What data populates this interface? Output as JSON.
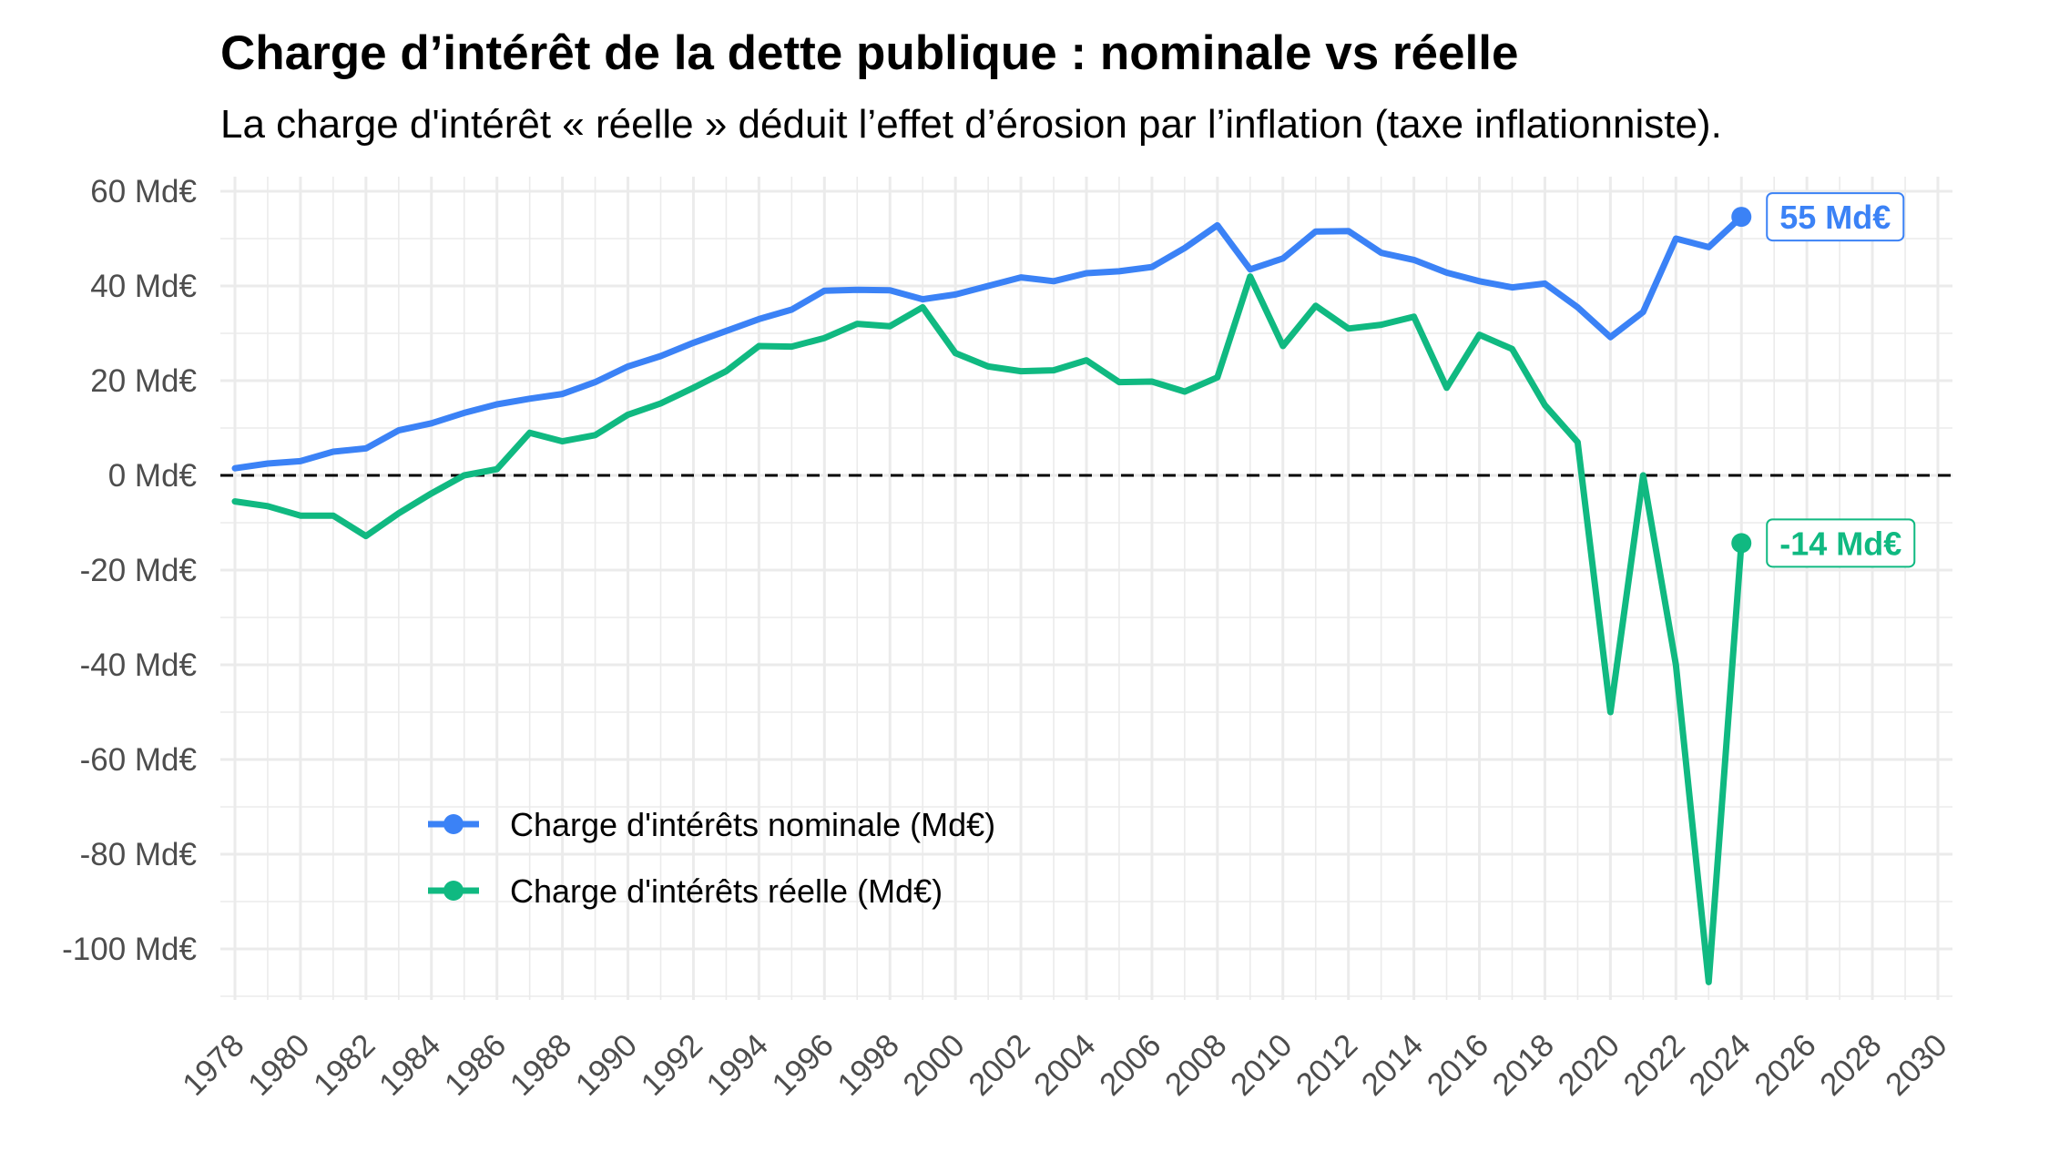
{
  "title": "Charge d’intérêt de la dette publique : nominale vs réelle",
  "subtitle": "La charge d'intérêt « réelle » déduit l’effet d’érosion par l’inflation (taxe inflationniste).",
  "colors": {
    "nominal": "#3b82f6",
    "real": "#10b981",
    "grid": "#ebebeb",
    "zero_line": "#000000",
    "axis_text": "#4d4d4d"
  },
  "chart_data": {
    "type": "line",
    "x_axis": {
      "range": [
        1978,
        2030
      ],
      "ticks": [
        1978,
        1980,
        1982,
        1984,
        1986,
        1988,
        1990,
        1992,
        1994,
        1996,
        1998,
        2000,
        2002,
        2004,
        2006,
        2008,
        2010,
        2012,
        2014,
        2016,
        2018,
        2020,
        2022,
        2024,
        2026,
        2028,
        2030
      ]
    },
    "y_axis": {
      "range": [
        -110,
        60
      ],
      "ticks": [
        60,
        40,
        20,
        0,
        -20,
        -40,
        -60,
        -80,
        -100
      ],
      "tick_labels": [
        "60 Md€",
        "40 Md€",
        "20 Md€",
        "0 Md€",
        "-20 Md€",
        "-40 Md€",
        "-60 Md€",
        "-80 Md€",
        "-100 Md€"
      ]
    },
    "grid": true,
    "reference_line": {
      "y": 0,
      "style": "dashed"
    },
    "legend_position": "bottom-left",
    "x": [
      1978,
      1979,
      1980,
      1981,
      1982,
      1983,
      1984,
      1985,
      1986,
      1987,
      1988,
      1989,
      1990,
      1991,
      1992,
      1993,
      1994,
      1995,
      1996,
      1997,
      1998,
      1999,
      2000,
      2001,
      2002,
      2003,
      2004,
      2005,
      2006,
      2007,
      2008,
      2009,
      2010,
      2011,
      2012,
      2013,
      2014,
      2015,
      2016,
      2017,
      2018,
      2019,
      2020,
      2021,
      2022,
      2023,
      2024
    ],
    "series": [
      {
        "name": "Charge d'intérêts nominale (Md€)",
        "color_key": "nominal",
        "values": [
          1.5,
          2.5,
          3,
          5,
          5.7,
          9.5,
          11,
          13.2,
          15,
          16.2,
          17.2,
          19.7,
          23,
          25.2,
          28,
          30.5,
          33,
          35,
          39,
          39.2,
          39.1,
          37.2,
          38.2,
          40,
          41.8,
          41,
          42.7,
          43.1,
          44,
          48,
          52.8,
          43.5,
          45.8,
          51.5,
          51.6,
          47,
          45.5,
          42.8,
          41,
          39.7,
          40.5,
          35.5,
          29.2,
          34.5,
          50,
          48.2,
          54.6
        ],
        "end_label": "55 Md€"
      },
      {
        "name": "Charge d'intérêts réelle (Md€)",
        "color_key": "real",
        "values": [
          -5.5,
          -6.5,
          -8.5,
          -8.5,
          -12.8,
          -8,
          -3.8,
          0,
          1.3,
          9,
          7.2,
          8.5,
          12.8,
          15.2,
          18.5,
          22,
          27.3,
          27.2,
          29,
          32,
          31.5,
          35.5,
          25.8,
          23,
          22,
          22.2,
          24.3,
          19.7,
          19.8,
          17.7,
          20.7,
          42,
          27.3,
          35.8,
          31,
          31.8,
          33.5,
          18.5,
          29.7,
          26.7,
          14.8,
          7,
          -50,
          0,
          -40,
          -107,
          -14.3
        ],
        "end_label": "-14 Md€"
      }
    ]
  }
}
